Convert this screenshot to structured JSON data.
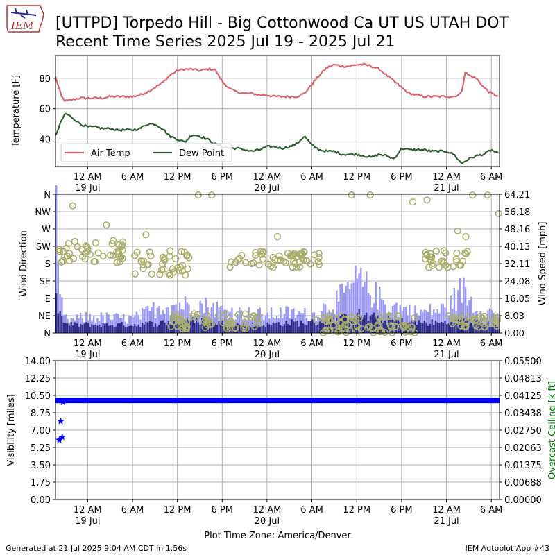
{
  "title_line1": "[UTTPD] Torpedo Hill - Big Cottonwood Ca UT US UTAH DOT",
  "title_line2": "Recent Time Series 2025 Jul 19 - 2025 Jul 21",
  "logo_text": "IEM",
  "footer_left": "Generated at 21 Jul 2025 9:04 AM CDT in 1.56s",
  "footer_right": "IEM Autoplot App #43",
  "xlabel": "Plot Time Zone: America/Denver",
  "colors": {
    "air_temp": "#d9636a",
    "dew_point": "#2e5e2e",
    "wind_speed": "#9999f5",
    "wind_dark": "#2e2e8a",
    "wind_dir": "#a9ae6a",
    "visibility": "#0000ff",
    "ceiling_label": "#008000",
    "grid": "#b0b0b0"
  },
  "chart_data": [
    {
      "type": "line",
      "ylabel": "Temperature [F]",
      "ylim": [
        22,
        95
      ],
      "x_ticks": [
        "12 AM",
        "6 AM",
        "12 PM",
        "6 PM",
        "12 AM",
        "6 AM",
        "12 PM",
        "6 PM",
        "12 AM",
        "6 AM"
      ],
      "x_date_labels": [
        "19 Jul",
        "20 Jul",
        "21 Jul"
      ],
      "x_range_hours": [
        -4.3,
        55.1
      ],
      "y_ticks": [
        40,
        60,
        80
      ],
      "grid": true,
      "legend": "lower-left",
      "series": [
        {
          "name": "Air Temp",
          "x": [
            -4.3,
            -3.5,
            -3,
            -2,
            -1,
            0,
            1,
            2,
            3,
            4,
            5,
            6,
            7,
            8,
            9,
            10,
            11,
            12,
            13,
            14,
            15,
            16,
            17,
            18,
            19,
            20,
            21,
            22,
            23,
            24,
            25,
            26,
            27,
            28,
            29,
            30,
            31,
            32,
            33,
            34,
            35,
            36,
            37,
            38,
            39,
            40,
            41,
            42,
            43,
            44,
            45,
            46,
            47,
            48,
            49,
            50,
            50.5,
            51,
            52,
            53,
            54,
            55.1
          ],
          "values": [
            81,
            68,
            65,
            66,
            67,
            67,
            67,
            67,
            68,
            68,
            68,
            68,
            69,
            71,
            74,
            77,
            82,
            85,
            86,
            86,
            85,
            86,
            86,
            78,
            73,
            71,
            70,
            70,
            69,
            69,
            68,
            68,
            68,
            68,
            70,
            76,
            82,
            87,
            89,
            88,
            88,
            89,
            89,
            88,
            86,
            82,
            78,
            74,
            70,
            69,
            68,
            68,
            68,
            68,
            68,
            70,
            84,
            82,
            80,
            74,
            70,
            68
          ]
        },
        {
          "name": "Dew Point",
          "x": [
            -4.3,
            -3.5,
            -3,
            -2,
            -1,
            0,
            1,
            2,
            3,
            4,
            5,
            6,
            7,
            8,
            9,
            10,
            11,
            12,
            13,
            14,
            15,
            16,
            17,
            18,
            19,
            20,
            21,
            22,
            23,
            24,
            25,
            26,
            27,
            28,
            29,
            30,
            31,
            32,
            33,
            34,
            35,
            36,
            37,
            38,
            39,
            40,
            41,
            42,
            43,
            44,
            45,
            46,
            47,
            48,
            49,
            50,
            51,
            52,
            53,
            54,
            55.1
          ],
          "values": [
            42,
            52,
            57,
            54,
            50,
            48,
            48,
            47,
            47,
            46,
            46,
            46,
            47,
            50,
            50,
            47,
            42,
            40,
            38,
            43,
            42,
            40,
            37,
            35,
            34,
            34,
            33,
            32,
            33,
            35,
            35,
            34,
            35,
            37,
            42,
            36,
            33,
            32,
            32,
            30,
            30,
            30,
            29,
            28,
            30,
            29,
            27,
            34,
            33,
            33,
            33,
            32,
            32,
            32,
            30,
            24,
            27,
            29,
            30,
            33,
            30
          ]
        }
      ]
    },
    {
      "type": "bar",
      "ylabel": "Wind Direction",
      "y2label": "Wind Speed [mph]",
      "dir_ticks": [
        "N",
        "NE",
        "E",
        "SE",
        "S",
        "SW",
        "W",
        "NW",
        "N"
      ],
      "dir_ylim": [
        0,
        360
      ],
      "speed_ticks": [
        "0.00",
        "8.03",
        "16.05",
        "24.08",
        "32.11",
        "40.13",
        "48.16",
        "56.18",
        "64.21"
      ],
      "speed_ylim": [
        0,
        64.21
      ],
      "x_ticks": [
        "12 AM",
        "6 AM",
        "12 PM",
        "6 PM",
        "12 AM",
        "6 AM",
        "12 PM",
        "6 PM",
        "12 AM",
        "6 AM"
      ],
      "x_date_labels": [
        "19 Jul",
        "20 Jul",
        "21 Jul"
      ],
      "x_range_hours": [
        -4.3,
        55.1
      ],
      "grid": true,
      "speed_profile": {
        "x": [
          -4.3,
          -4,
          -3,
          0,
          6,
          10,
          15,
          20,
          24,
          26,
          30,
          34,
          36,
          40,
          44,
          48,
          50,
          52,
          54,
          55.1
        ],
        "gust": [
          55,
          20,
          6,
          8,
          7,
          14,
          14,
          10,
          9,
          10,
          9,
          18,
          26,
          14,
          10,
          12,
          22,
          12,
          10,
          8
        ],
        "sustained": [
          30,
          10,
          4,
          4,
          4,
          5,
          6,
          4,
          4,
          5,
          5,
          7,
          9,
          6,
          5,
          5,
          7,
          5,
          4,
          4
        ]
      },
      "direction_clusters": [
        {
          "x": [
            -4,
            5
          ],
          "deg": [
            180,
            240
          ]
        },
        {
          "x": [
            6,
            14
          ],
          "deg": [
            150,
            215
          ]
        },
        {
          "x": [
            11,
            23
          ],
          "deg": [
            10,
            50
          ]
        },
        {
          "x": [
            19,
            31
          ],
          "deg": [
            170,
            215
          ]
        },
        {
          "x": [
            30,
            44
          ],
          "deg": [
            0,
            45
          ]
        },
        {
          "x": [
            45,
            51
          ],
          "deg": [
            170,
            215
          ]
        },
        {
          "x": [
            48,
            55
          ],
          "deg": [
            15,
            45
          ]
        }
      ],
      "direction_outliers": [
        {
          "x": -2,
          "deg": 330
        },
        {
          "x": 2.5,
          "deg": 280
        },
        {
          "x": 14.8,
          "deg": 358
        },
        {
          "x": 16.6,
          "deg": 358
        },
        {
          "x": 35.3,
          "deg": 358
        },
        {
          "x": 37.8,
          "deg": 358
        },
        {
          "x": 43.5,
          "deg": 340
        },
        {
          "x": 45.4,
          "deg": 345
        },
        {
          "x": 51.5,
          "deg": 358
        },
        {
          "x": 53.5,
          "deg": 358
        },
        {
          "x": 49.5,
          "deg": 265
        },
        {
          "x": 25.4,
          "deg": 250
        },
        {
          "x": 3.4,
          "deg": 240
        },
        {
          "x": 7.8,
          "deg": 255
        },
        {
          "x": 50.6,
          "deg": 250
        },
        {
          "x": 55,
          "deg": 310
        }
      ]
    },
    {
      "type": "scatter",
      "ylabel": "Visibility [miles]",
      "y2label": "Overcast Ceiling [k ft]",
      "ylim": [
        0,
        14
      ],
      "y_ticks": [
        "0.00",
        "1.75",
        "3.50",
        "5.25",
        "7.00",
        "8.75",
        "10.50",
        "12.25",
        "14.00"
      ],
      "y2lim": [
        0,
        0.055
      ],
      "y2_ticks": [
        "0.00000",
        "0.00688",
        "0.01375",
        "0.02063",
        "0.02750",
        "0.03438",
        "0.04125",
        "0.04813",
        "0.05500"
      ],
      "x_ticks": [
        "12 AM",
        "6 AM",
        "12 PM",
        "6 PM",
        "12 AM",
        "6 AM",
        "12 PM",
        "6 PM",
        "12 AM",
        "6 AM"
      ],
      "x_date_labels": [
        "19 Jul",
        "20 Jul",
        "21 Jul"
      ],
      "x_range_hours": [
        -4.3,
        55.1
      ],
      "grid": true,
      "visibility_constant": 10.0,
      "visibility_x_range": [
        -4.3,
        55.1
      ],
      "visibility_low_points": [
        {
          "x": -3.6,
          "y": 7.9
        },
        {
          "x": -3.4,
          "y": 6.3
        },
        {
          "x": -3.8,
          "y": 6.0
        },
        {
          "x": -3.3,
          "y": 9.8
        }
      ]
    }
  ]
}
